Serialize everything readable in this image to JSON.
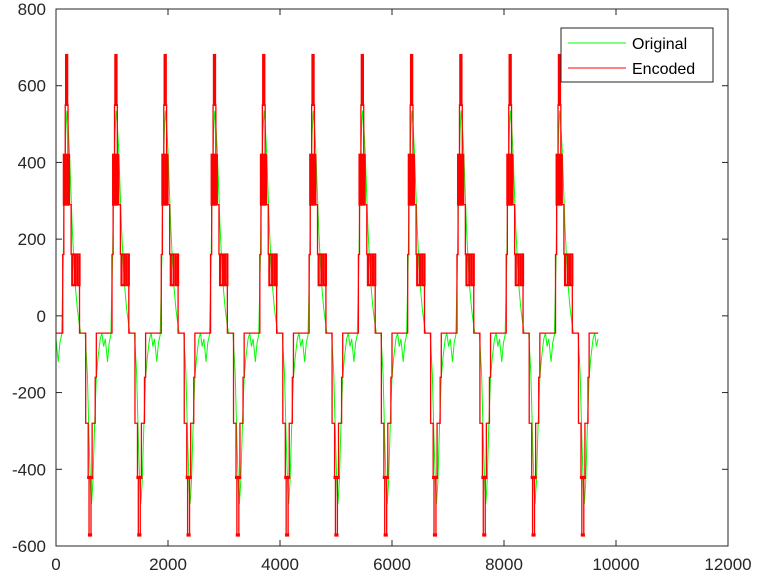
{
  "chart_data": {
    "type": "line",
    "title": "",
    "xlabel": "",
    "ylabel": "",
    "xlim": [
      0,
      12000
    ],
    "ylim": [
      -600,
      800
    ],
    "xticks": [
      0,
      2000,
      4000,
      6000,
      8000,
      10000,
      12000
    ],
    "yticks": [
      -600,
      -400,
      -200,
      0,
      200,
      400,
      600,
      800
    ],
    "xtick_labels": [
      "0",
      "2000",
      "4000",
      "6000",
      "8000",
      "10000",
      "12000"
    ],
    "ytick_labels": [
      "-600",
      "-400",
      "-200",
      "0",
      "200",
      "400",
      "600",
      "800"
    ],
    "grid": false,
    "legend_position": "top-right",
    "period": 880,
    "cycles": 11,
    "x_end": 10000,
    "series": [
      {
        "name": "Original",
        "color": "#00ff00",
        "cycle_shape": [
          [
            0,
            -60
          ],
          [
            20,
            -90
          ],
          [
            40,
            -120
          ],
          [
            70,
            -70
          ],
          [
            100,
            -50
          ],
          [
            130,
            150
          ],
          [
            150,
            350
          ],
          [
            175,
            480
          ],
          [
            195,
            535
          ],
          [
            215,
            500
          ],
          [
            240,
            430
          ],
          [
            265,
            330
          ],
          [
            290,
            230
          ],
          [
            320,
            140
          ],
          [
            350,
            70
          ],
          [
            380,
            20
          ],
          [
            410,
            -15
          ],
          [
            440,
            -45
          ],
          [
            520,
            -45
          ],
          [
            560,
            -150
          ],
          [
            590,
            -320
          ],
          [
            620,
            -460
          ],
          [
            635,
            -490
          ],
          [
            660,
            -430
          ],
          [
            690,
            -280
          ],
          [
            720,
            -160
          ],
          [
            750,
            -110
          ],
          [
            790,
            -60
          ],
          [
            820,
            -45
          ],
          [
            850,
            -80
          ],
          [
            880,
            -60
          ]
        ]
      },
      {
        "name": "Encoded",
        "color": "#ff0000",
        "cycle_shape": [
          [
            0,
            -45
          ],
          [
            40,
            -45
          ],
          [
            40,
            -45
          ],
          [
            120,
            -45
          ],
          [
            120,
            160
          ],
          [
            140,
            160
          ],
          [
            140,
            420
          ],
          [
            165,
            420
          ],
          [
            165,
            550
          ],
          [
            180,
            550
          ],
          [
            180,
            680
          ],
          [
            200,
            680
          ],
          [
            200,
            550
          ],
          [
            215,
            550
          ],
          [
            215,
            420
          ],
          [
            240,
            420
          ],
          [
            240,
            290
          ],
          [
            270,
            290
          ],
          [
            270,
            160
          ],
          [
            290,
            160
          ],
          [
            290,
            80
          ],
          [
            340,
            80
          ],
          [
            340,
            160
          ],
          [
            380,
            160
          ],
          [
            380,
            80
          ],
          [
            420,
            80
          ],
          [
            420,
            -45
          ],
          [
            530,
            -45
          ],
          [
            530,
            -280
          ],
          [
            575,
            -280
          ],
          [
            575,
            -420
          ],
          [
            590,
            -420
          ],
          [
            590,
            -570
          ],
          [
            625,
            -570
          ],
          [
            625,
            -420
          ],
          [
            645,
            -420
          ],
          [
            645,
            -280
          ],
          [
            700,
            -280
          ],
          [
            700,
            -160
          ],
          [
            720,
            -160
          ],
          [
            720,
            -45
          ],
          [
            880,
            -45
          ]
        ]
      }
    ]
  }
}
